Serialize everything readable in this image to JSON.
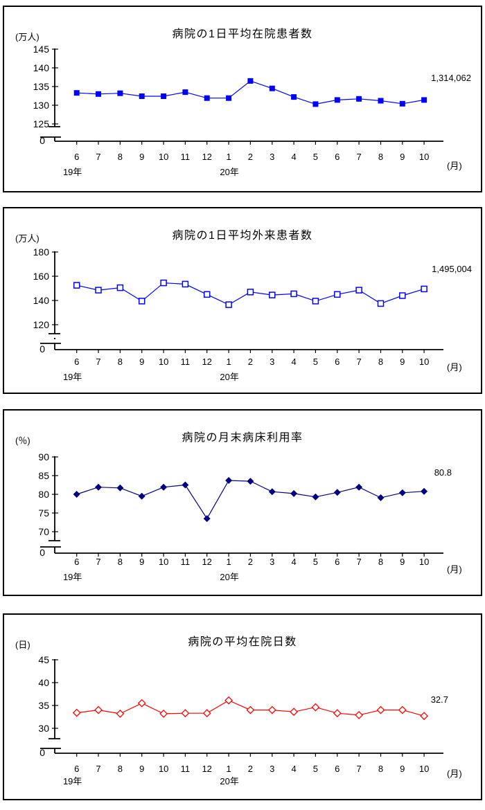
{
  "page": {
    "background": "#ffffff",
    "text_color": "#000000"
  },
  "chart_data": [
    {
      "type": "line",
      "title": "病院の1日平均在院患者数",
      "unit_label": "(万人)",
      "latest_value_label": "1,314,062",
      "series_color": "#0000ff",
      "marker": "filled-square",
      "x_categories": [
        "6",
        "7",
        "8",
        "9",
        "10",
        "11",
        "12",
        "1",
        "2",
        "3",
        "4",
        "5",
        "6",
        "7",
        "8",
        "9",
        "10"
      ],
      "x_axis_label": "(月)",
      "x_year_groups": [
        {
          "label": "19年",
          "month_index": 0
        },
        {
          "label": "20年",
          "month_index": 7
        }
      ],
      "y_axis": {
        "tick_labels": [
          "145",
          "140",
          "135",
          "130",
          "125"
        ],
        "zero_label": "0",
        "broken_axis": true,
        "unit": "万人"
      },
      "values": [
        133.3,
        133.0,
        133.2,
        132.4,
        132.4,
        133.5,
        131.9,
        131.9,
        136.5,
        134.5,
        132.2,
        130.3,
        131.4,
        131.7,
        131.2,
        130.4,
        131.4
      ]
    },
    {
      "type": "line",
      "title": "病院の1日平均外来患者数",
      "unit_label": "(万人)",
      "latest_value_label": "1,495,004",
      "series_color": "#0000ff",
      "marker": "open-square",
      "x_categories": [
        "6",
        "7",
        "8",
        "9",
        "10",
        "11",
        "12",
        "1",
        "2",
        "3",
        "4",
        "5",
        "6",
        "7",
        "8",
        "9",
        "10"
      ],
      "x_axis_label": "(月)",
      "x_year_groups": [
        {
          "label": "19年",
          "month_index": 0
        },
        {
          "label": "20年",
          "month_index": 7
        }
      ],
      "y_axis": {
        "tick_labels": [
          "180",
          "160",
          "140",
          "120"
        ],
        "zero_label": "0",
        "broken_axis": true,
        "unit": "万人"
      },
      "values": [
        152.5,
        148.5,
        150.5,
        139.5,
        154.5,
        153.5,
        145.0,
        136.5,
        147.0,
        144.5,
        145.5,
        139.5,
        145.0,
        148.5,
        137.5,
        144.0,
        149.5
      ]
    },
    {
      "type": "line",
      "title": "病院の月末病床利用率",
      "unit_label": "(％)",
      "latest_value_label": "80.8",
      "series_color": "#000080",
      "marker": "filled-diamond",
      "x_categories": [
        "6",
        "7",
        "8",
        "9",
        "10",
        "11",
        "12",
        "1",
        "2",
        "3",
        "4",
        "5",
        "6",
        "7",
        "8",
        "9",
        "10"
      ],
      "x_axis_label": "(月)",
      "x_year_groups": [
        {
          "label": "19年",
          "month_index": 0
        },
        {
          "label": "20年",
          "month_index": 7
        }
      ],
      "y_axis": {
        "tick_labels": [
          "90",
          "85",
          "80",
          "75",
          "70"
        ],
        "zero_label": "0",
        "broken_axis": true,
        "unit": "%"
      },
      "values": [
        80.0,
        81.9,
        81.7,
        79.5,
        81.9,
        82.5,
        73.5,
        83.7,
        83.5,
        80.7,
        80.2,
        79.3,
        80.5,
        81.9,
        79.1,
        80.4,
        80.8
      ]
    },
    {
      "type": "line",
      "title": "病院の平均在院日数",
      "unit_label": "(日)",
      "latest_value_label": "32.7",
      "series_color": "#ff0000",
      "marker": "open-diamond",
      "x_categories": [
        "6",
        "7",
        "8",
        "9",
        "10",
        "11",
        "12",
        "1",
        "2",
        "3",
        "4",
        "5",
        "6",
        "7",
        "8",
        "9",
        "10"
      ],
      "x_axis_label": "(月)",
      "x_year_groups": [
        {
          "label": "19年",
          "month_index": 0
        },
        {
          "label": "20年",
          "month_index": 7
        }
      ],
      "y_axis": {
        "tick_labels": [
          "45",
          "40",
          "35",
          "30"
        ],
        "zero_label": "0",
        "broken_axis": true,
        "unit": "日"
      },
      "values": [
        33.4,
        34.0,
        33.2,
        35.5,
        33.2,
        33.3,
        33.3,
        36.1,
        34.0,
        34.0,
        33.6,
        34.6,
        33.3,
        32.9,
        34.0,
        34.0,
        32.7
      ]
    }
  ]
}
